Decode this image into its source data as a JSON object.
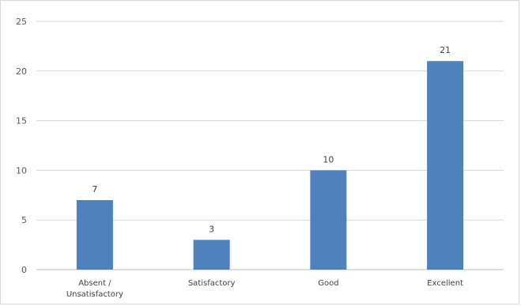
{
  "chart_data": {
    "type": "bar",
    "categories": [
      [
        "Absent /",
        "Unsatisfactory"
      ],
      [
        "Satisfactory"
      ],
      [
        "Good"
      ],
      [
        "Excellent"
      ]
    ],
    "values": [
      7,
      3,
      10,
      21
    ],
    "title": "",
    "xlabel": "",
    "ylabel": "",
    "ylim": [
      0,
      25
    ],
    "yticks": [
      0,
      5,
      10,
      15,
      20,
      25
    ],
    "grid": true,
    "legend": "none",
    "data_labels": true,
    "colors": {
      "bar": "#4f81bd",
      "grid": "#d9d9d9",
      "axis": "#bfbfbf"
    }
  }
}
